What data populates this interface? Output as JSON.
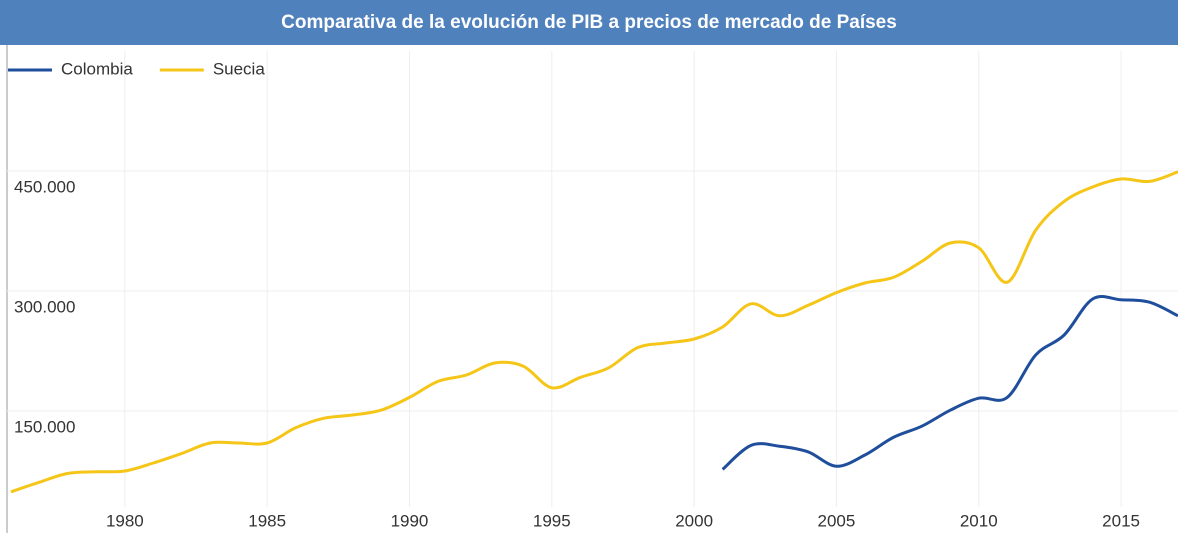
{
  "chart_data": {
    "type": "line",
    "title": "Comparativa de la evolución de PIB a precios de mercado de Países",
    "x": [
      1976,
      1977,
      1978,
      1979,
      1980,
      1981,
      1982,
      1983,
      1984,
      1985,
      1986,
      1987,
      1988,
      1989,
      1990,
      1991,
      1992,
      1993,
      1994,
      1995,
      1996,
      1997,
      1998,
      1999,
      2000,
      2001,
      2002,
      2003,
      2004,
      2005,
      2006,
      2007,
      2008,
      2009,
      2010,
      2011,
      2012,
      2013,
      2014,
      2015,
      2016,
      2017
    ],
    "series": [
      {
        "name": "Colombia",
        "color": "#1f4e9c",
        "values": [
          null,
          null,
          null,
          null,
          null,
          null,
          null,
          null,
          null,
          null,
          null,
          null,
          null,
          null,
          null,
          null,
          null,
          null,
          null,
          null,
          null,
          null,
          null,
          null,
          null,
          77000,
          107000,
          106000,
          99000,
          81000,
          95000,
          117000,
          131000,
          151000,
          166000,
          167000,
          220000,
          245000,
          290000,
          289000,
          286000,
          269000
        ]
      },
      {
        "name": "Suecia",
        "color": "#f5c518",
        "values": [
          49000,
          61000,
          72000,
          74000,
          75000,
          85000,
          97000,
          110000,
          110000,
          110000,
          129000,
          141000,
          145000,
          151000,
          167000,
          187000,
          195000,
          210000,
          206000,
          179000,
          192000,
          204000,
          229000,
          235000,
          240000,
          255000,
          284000,
          269000,
          282000,
          298000,
          310000,
          317000,
          337000,
          360000,
          354000,
          311000,
          376000,
          412000,
          430000,
          440000,
          437000,
          449000
        ]
      }
    ],
    "xlim": [
      1976,
      2017
    ],
    "xticks": [
      1980,
      1985,
      1990,
      1995,
      2000,
      2005,
      2010,
      2015
    ],
    "ylim": [
      30000,
      600000
    ],
    "yticks": [
      {
        "value": 150000,
        "label": "150.000"
      },
      {
        "value": 300000,
        "label": "300.000"
      },
      {
        "value": 450000,
        "label": "450.000"
      }
    ],
    "grid": true,
    "legend": "top-left"
  }
}
